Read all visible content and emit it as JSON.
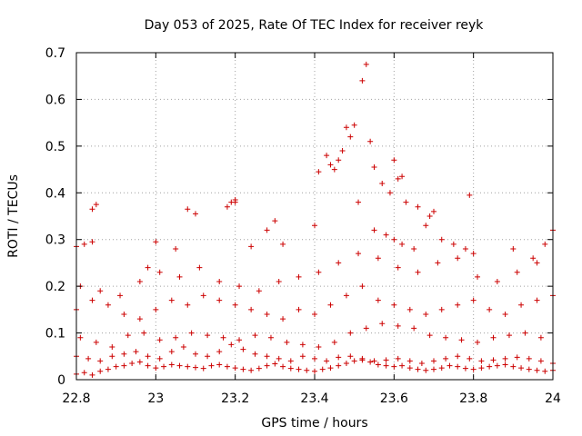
{
  "chart_data": {
    "type": "scatter",
    "title": "Day 053 of 2025, Rate Of TEC Index for receiver reyk",
    "xlabel": "GPS time / hours",
    "ylabel": "ROTI / TECUs",
    "xlim": [
      22.8,
      24
    ],
    "ylim": [
      0,
      0.7
    ],
    "xticks": [
      22.8,
      23,
      23.2,
      23.4,
      23.6,
      23.8,
      24
    ],
    "xtick_labels": [
      "22.8",
      "23",
      "23.2",
      "23.4",
      "23.6",
      "23.8",
      "24"
    ],
    "yticks": [
      0,
      0.1,
      0.2,
      0.3,
      0.4,
      0.5,
      0.6,
      0.7
    ],
    "ytick_labels": [
      "0",
      "0.1",
      "0.2",
      "0.3",
      "0.4",
      "0.5",
      "0.6",
      "0.7"
    ],
    "grid": true,
    "marker": "+",
    "marker_color": "#cc0000",
    "series": [
      {
        "name": "band-low",
        "x": [
          22.8,
          22.82,
          22.84,
          22.86,
          22.88,
          22.9,
          22.92,
          22.94,
          22.96,
          22.98,
          23.0,
          23.02,
          23.04,
          23.06,
          23.08,
          23.1,
          23.12,
          23.14,
          23.16,
          23.18,
          23.2,
          23.22,
          23.24,
          23.26,
          23.28,
          23.3,
          23.32,
          23.34,
          23.36,
          23.38,
          23.4,
          23.42,
          23.44,
          23.46,
          23.48,
          23.5,
          23.52,
          23.54,
          23.56,
          23.58,
          23.6,
          23.62,
          23.64,
          23.66,
          23.68,
          23.7,
          23.72,
          23.74,
          23.76,
          23.78,
          23.8,
          23.82,
          23.84,
          23.86,
          23.88,
          23.9,
          23.92,
          23.94,
          23.96,
          23.98,
          24.0
        ],
        "y": [
          0.012,
          0.015,
          0.01,
          0.018,
          0.022,
          0.028,
          0.03,
          0.035,
          0.038,
          0.03,
          0.025,
          0.028,
          0.032,
          0.03,
          0.028,
          0.026,
          0.024,
          0.03,
          0.032,
          0.028,
          0.025,
          0.022,
          0.02,
          0.024,
          0.03,
          0.034,
          0.028,
          0.024,
          0.022,
          0.02,
          0.018,
          0.022,
          0.025,
          0.03,
          0.035,
          0.04,
          0.042,
          0.038,
          0.032,
          0.03,
          0.028,
          0.03,
          0.025,
          0.022,
          0.02,
          0.022,
          0.025,
          0.03,
          0.028,
          0.024,
          0.022,
          0.025,
          0.028,
          0.03,
          0.032,
          0.028,
          0.025,
          0.022,
          0.02,
          0.018,
          0.02
        ]
      },
      {
        "name": "band-mid",
        "x": [
          22.8,
          22.83,
          22.86,
          22.89,
          22.92,
          22.95,
          22.98,
          23.01,
          23.04,
          23.07,
          23.1,
          23.13,
          23.16,
          23.19,
          23.22,
          23.25,
          23.28,
          23.31,
          23.34,
          23.37,
          23.4,
          23.43,
          23.46,
          23.49,
          23.52,
          23.55,
          23.58,
          23.61,
          23.64,
          23.67,
          23.7,
          23.73,
          23.76,
          23.79,
          23.82,
          23.85,
          23.88,
          23.91,
          23.94,
          23.97,
          24.0
        ],
        "y": [
          0.05,
          0.045,
          0.04,
          0.05,
          0.055,
          0.06,
          0.05,
          0.045,
          0.06,
          0.07,
          0.055,
          0.05,
          0.06,
          0.075,
          0.065,
          0.055,
          0.05,
          0.045,
          0.04,
          0.05,
          0.045,
          0.04,
          0.048,
          0.05,
          0.045,
          0.04,
          0.042,
          0.045,
          0.04,
          0.035,
          0.04,
          0.045,
          0.05,
          0.045,
          0.04,
          0.042,
          0.045,
          0.048,
          0.045,
          0.04,
          0.035
        ]
      },
      {
        "name": "band-0.1",
        "x": [
          22.81,
          22.85,
          22.89,
          22.93,
          22.97,
          23.01,
          23.05,
          23.09,
          23.13,
          23.17,
          23.21,
          23.25,
          23.29,
          23.33,
          23.37,
          23.41,
          23.45,
          23.49,
          23.53,
          23.57,
          23.61,
          23.65,
          23.69,
          23.73,
          23.77,
          23.81,
          23.85,
          23.89,
          23.93,
          23.97
        ],
        "y": [
          0.09,
          0.08,
          0.07,
          0.095,
          0.1,
          0.085,
          0.09,
          0.1,
          0.095,
          0.09,
          0.085,
          0.095,
          0.09,
          0.08,
          0.075,
          0.07,
          0.08,
          0.1,
          0.11,
          0.12,
          0.115,
          0.11,
          0.095,
          0.09,
          0.085,
          0.08,
          0.09,
          0.095,
          0.1,
          0.09
        ]
      },
      {
        "name": "band-0.15",
        "x": [
          22.8,
          22.84,
          22.88,
          22.92,
          22.96,
          23.0,
          23.04,
          23.08,
          23.12,
          23.16,
          23.2,
          23.24,
          23.28,
          23.32,
          23.36,
          23.4,
          23.44,
          23.48,
          23.52,
          23.56,
          23.6,
          23.64,
          23.68,
          23.72,
          23.76,
          23.8,
          23.84,
          23.88,
          23.92,
          23.96,
          24.0
        ],
        "y": [
          0.15,
          0.17,
          0.16,
          0.14,
          0.13,
          0.15,
          0.17,
          0.16,
          0.18,
          0.17,
          0.16,
          0.15,
          0.14,
          0.13,
          0.15,
          0.14,
          0.16,
          0.18,
          0.2,
          0.17,
          0.16,
          0.15,
          0.14,
          0.15,
          0.16,
          0.17,
          0.15,
          0.14,
          0.16,
          0.17,
          0.18
        ]
      },
      {
        "name": "band-0.2",
        "x": [
          22.81,
          22.86,
          22.91,
          22.96,
          23.01,
          23.06,
          23.11,
          23.16,
          23.21,
          23.26,
          23.31,
          23.36,
          23.41,
          23.46,
          23.51,
          23.56,
          23.61,
          23.66,
          23.71,
          23.76,
          23.81,
          23.86,
          23.91,
          23.96
        ],
        "y": [
          0.2,
          0.19,
          0.18,
          0.21,
          0.23,
          0.22,
          0.24,
          0.21,
          0.2,
          0.19,
          0.21,
          0.22,
          0.23,
          0.25,
          0.27,
          0.26,
          0.24,
          0.23,
          0.25,
          0.26,
          0.22,
          0.21,
          0.23,
          0.25
        ]
      },
      {
        "name": "band-0.3",
        "x": [
          22.8,
          22.82,
          22.84,
          22.98,
          23.0,
          23.05,
          23.08,
          23.1,
          23.18,
          23.2,
          23.24,
          23.28,
          23.3,
          23.32,
          23.4,
          23.55,
          23.58,
          23.6,
          23.62,
          23.65,
          23.68,
          23.7,
          23.72,
          23.75,
          23.78,
          23.8,
          23.9,
          23.95,
          23.98,
          24.0
        ],
        "y": [
          0.285,
          0.29,
          0.295,
          0.24,
          0.295,
          0.28,
          0.365,
          0.355,
          0.37,
          0.38,
          0.285,
          0.32,
          0.34,
          0.29,
          0.33,
          0.32,
          0.31,
          0.3,
          0.29,
          0.28,
          0.33,
          0.36,
          0.3,
          0.29,
          0.28,
          0.27,
          0.28,
          0.26,
          0.29,
          0.32
        ]
      },
      {
        "name": "burst",
        "x": [
          22.84,
          22.85,
          23.19,
          23.2,
          23.41,
          23.43,
          23.44,
          23.45,
          23.46,
          23.47,
          23.48,
          23.49,
          23.5,
          23.51,
          23.52,
          23.53,
          23.54,
          23.55,
          23.57,
          23.59,
          23.6,
          23.61,
          23.62,
          23.63,
          23.66,
          23.69,
          23.79
        ],
        "y": [
          0.365,
          0.375,
          0.38,
          0.385,
          0.445,
          0.48,
          0.46,
          0.45,
          0.47,
          0.49,
          0.54,
          0.52,
          0.545,
          0.38,
          0.64,
          0.675,
          0.51,
          0.455,
          0.42,
          0.4,
          0.47,
          0.43,
          0.435,
          0.38,
          0.37,
          0.35,
          0.395
        ]
      }
    ]
  }
}
